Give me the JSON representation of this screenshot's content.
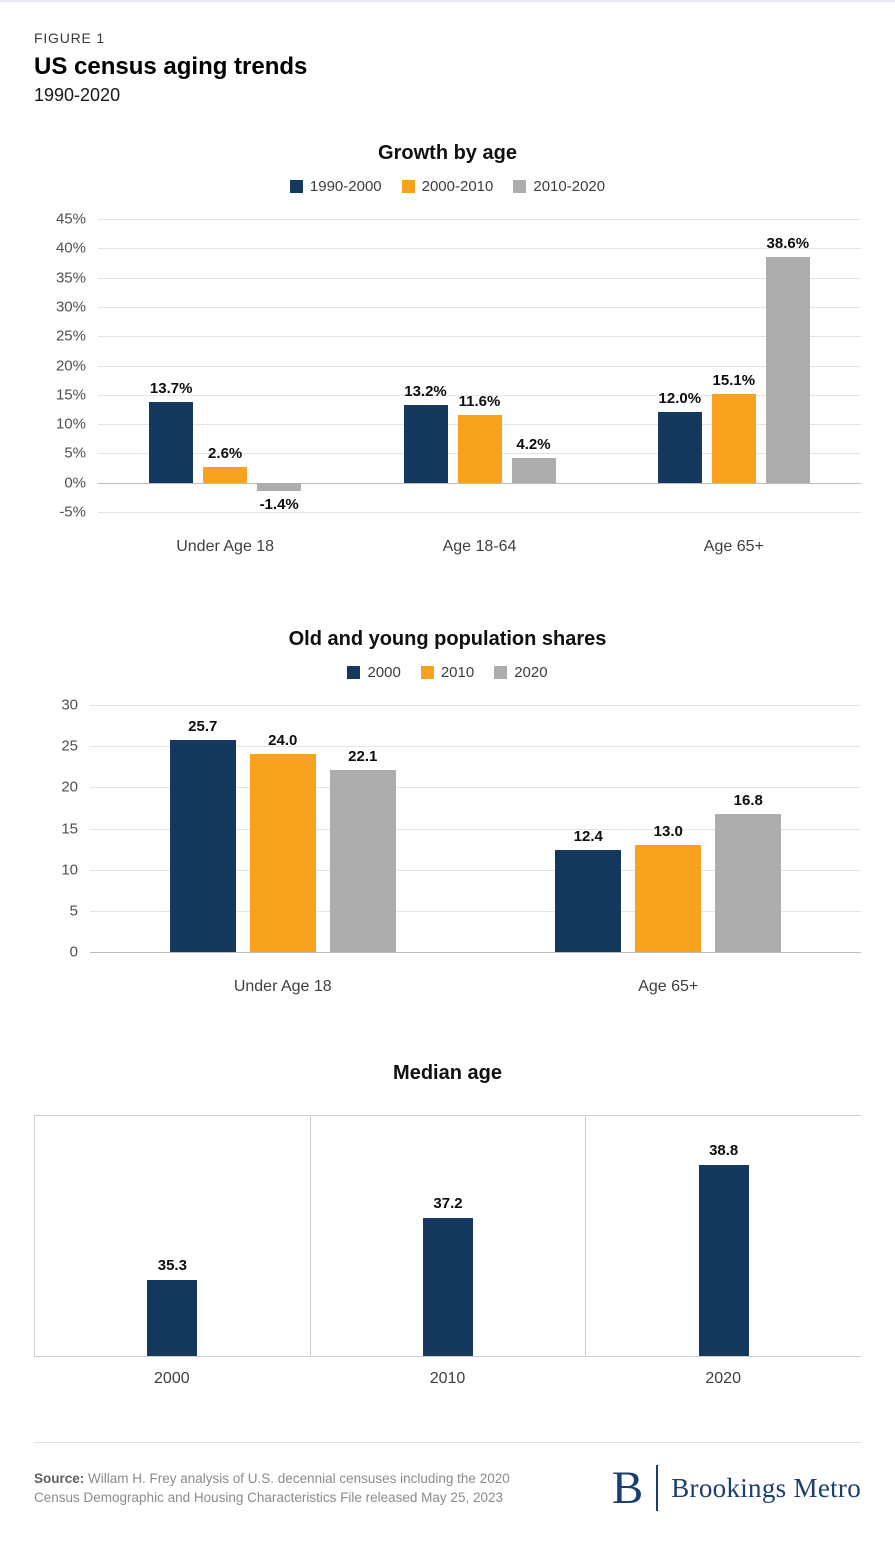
{
  "page": {
    "figure_label": "FIGURE 1",
    "title": "US census aging trends",
    "subtitle": "1990-2020"
  },
  "colors": {
    "navy": "#14395C",
    "orange": "#F9A21D",
    "gray": "#ADADAD",
    "logo_navy": "#1A3E6F",
    "grid": "#E4E4E4",
    "zero_line": "#BDBDBD"
  },
  "chart_data": [
    {
      "type": "bar",
      "title": "Growth by age",
      "categories": [
        "Under Age 18",
        "Age 18-64",
        "Age 65+"
      ],
      "series": [
        {
          "name": "1990-2000",
          "color": "navy",
          "values": [
            13.7,
            13.2,
            12.0
          ],
          "labels": [
            "13.7%",
            "13.2%",
            "12.0%"
          ]
        },
        {
          "name": "2000-2010",
          "color": "orange",
          "values": [
            2.6,
            11.6,
            15.1
          ],
          "labels": [
            "2.6%",
            "11.6%",
            "15.1%"
          ]
        },
        {
          "name": "2010-2020",
          "color": "gray",
          "values": [
            -1.4,
            4.2,
            38.6
          ],
          "labels": [
            "-1.4%",
            "4.2%",
            "38.6%"
          ]
        }
      ],
      "ylim": [
        -5,
        45
      ],
      "ytick_step": 5,
      "ytick_suffix": "%",
      "grid": true,
      "legend_position": "top"
    },
    {
      "type": "bar",
      "title": "Old and young population shares",
      "categories": [
        "Under Age 18",
        "Age 65+"
      ],
      "series": [
        {
          "name": "2000",
          "color": "navy",
          "values": [
            25.7,
            12.4
          ],
          "labels": [
            "25.7",
            "12.4"
          ]
        },
        {
          "name": "2010",
          "color": "orange",
          "values": [
            24.0,
            13.0
          ],
          "labels": [
            "24.0",
            "13.0"
          ]
        },
        {
          "name": "2020",
          "color": "gray",
          "values": [
            22.1,
            16.8
          ],
          "labels": [
            "22.1",
            "16.8"
          ]
        }
      ],
      "ylim": [
        0,
        30
      ],
      "ytick_step": 5,
      "ytick_suffix": "",
      "grid": true,
      "legend_position": "top"
    },
    {
      "type": "bar",
      "title": "Median age",
      "categories": [
        "2000",
        "2010",
        "2020"
      ],
      "series": [
        {
          "name": "Median age",
          "color": "navy",
          "values": [
            35.3,
            37.2,
            38.8
          ],
          "labels": [
            "35.3",
            "37.2",
            "38.8"
          ]
        }
      ],
      "ylim": [
        33,
        40.3
      ],
      "grid": false,
      "panelled": true,
      "legend_position": "none"
    }
  ],
  "footer": {
    "source_bold": "Source:",
    "source_text": " Willam H. Frey analysis of U.S. decennial censuses including the 2020 Census Demographic and Housing Characteristics File released May 25, 2023",
    "logo_letter": "B",
    "logo_text": "Brookings Metro"
  }
}
